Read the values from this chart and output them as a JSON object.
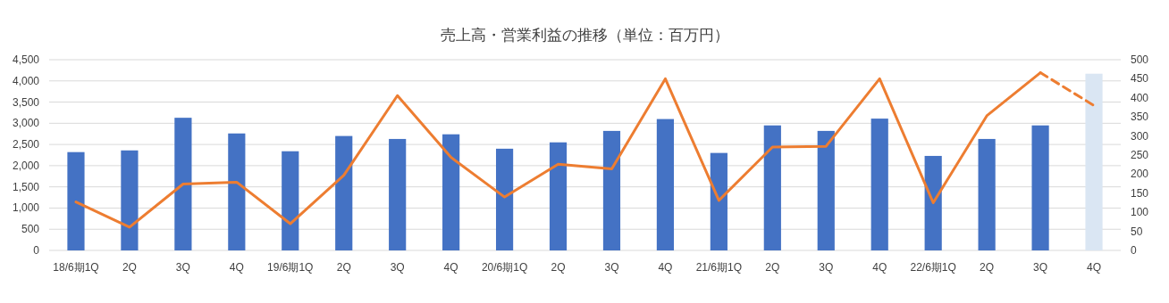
{
  "chart_data": {
    "type": "bar",
    "title": "売上高・営業利益の推移（単位：百万円）",
    "categories": [
      "18/6期1Q",
      "2Q",
      "3Q",
      "4Q",
      "19/6期1Q",
      "2Q",
      "3Q",
      "4Q",
      "20/6期1Q",
      "2Q",
      "3Q",
      "4Q",
      "21/6期1Q",
      "2Q",
      "3Q",
      "4Q",
      "22/6期1Q",
      "2Q",
      "3Q",
      "4Q"
    ],
    "series": [
      {
        "colors": [
          "#4472c4",
          "#4472c4",
          "#4472c4",
          "#4472c4",
          "#4472c4",
          "#4472c4",
          "#4472c4",
          "#4472c4",
          "#4472c4",
          "#4472c4",
          "#4472c4",
          "#4472c4",
          "#4472c4",
          "#4472c4",
          "#4472c4",
          "#4472c4",
          "#4472c4",
          "#4472c4",
          "#4472c4",
          "#dae6f3"
        ],
        "values": [
          2320,
          2360,
          3130,
          2760,
          2340,
          2700,
          2630,
          2740,
          2400,
          2550,
          2820,
          3100,
          2300,
          2950,
          2820,
          3110,
          2230,
          2630,
          2950,
          4170
        ]
      },
      {
        "type": "line",
        "axis": "y2",
        "color": "#ed7d31",
        "line_style": "solid",
        "values": [
          127,
          61,
          174,
          179,
          70,
          197,
          406,
          244,
          140,
          226,
          214,
          450,
          131,
          271,
          273,
          450,
          125,
          353,
          466,
          null
        ]
      },
      {
        "type": "line",
        "axis": "y2",
        "color": "#ed7d31",
        "line_style": "dashed",
        "values": [
          null,
          null,
          null,
          null,
          null,
          null,
          null,
          null,
          null,
          null,
          null,
          null,
          null,
          null,
          null,
          null,
          null,
          null,
          466,
          380
        ]
      }
    ],
    "ylim": [
      0,
      4500
    ],
    "yticks": [
      0,
      500,
      {
        "value": 1000,
        "label": "1,000"
      },
      {
        "value": 1500,
        "label": "1,500"
      },
      {
        "value": 2000,
        "label": "2,000"
      },
      {
        "value": 2500,
        "label": "2,500"
      },
      {
        "value": 3000,
        "label": "3,000"
      },
      {
        "value": 3500,
        "label": "3,500"
      },
      {
        "value": 4000,
        "label": "4,000"
      },
      {
        "value": 4500,
        "label": "4,500"
      }
    ],
    "y2lim": [
      0,
      500
    ],
    "y2ticks": [
      0,
      50,
      100,
      150,
      200,
      250,
      300,
      350,
      400,
      450,
      500
    ],
    "grid": "y"
  }
}
